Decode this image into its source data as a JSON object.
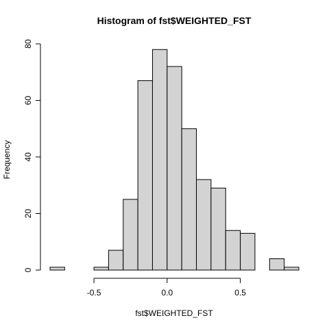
{
  "chart_data": {
    "type": "bar",
    "title": "Histogram of fst$WEIGHTED_FST",
    "xlabel": "fst$WEIGHTED_FST",
    "ylabel": "Frequency",
    "bin_width": 0.1,
    "bins": [
      {
        "x0": -0.8,
        "x1": -0.7,
        "count": 1
      },
      {
        "x0": -0.7,
        "x1": -0.6,
        "count": 0
      },
      {
        "x0": -0.6,
        "x1": -0.5,
        "count": 0
      },
      {
        "x0": -0.5,
        "x1": -0.4,
        "count": 1
      },
      {
        "x0": -0.4,
        "x1": -0.3,
        "count": 7
      },
      {
        "x0": -0.3,
        "x1": -0.2,
        "count": 25
      },
      {
        "x0": -0.2,
        "x1": -0.1,
        "count": 67
      },
      {
        "x0": -0.1,
        "x1": 0.0,
        "count": 78
      },
      {
        "x0": 0.0,
        "x1": 0.1,
        "count": 72
      },
      {
        "x0": 0.1,
        "x1": 0.2,
        "count": 50
      },
      {
        "x0": 0.2,
        "x1": 0.3,
        "count": 32
      },
      {
        "x0": 0.3,
        "x1": 0.4,
        "count": 29
      },
      {
        "x0": 0.4,
        "x1": 0.5,
        "count": 14
      },
      {
        "x0": 0.5,
        "x1": 0.6,
        "count": 13
      },
      {
        "x0": 0.6,
        "x1": 0.7,
        "count": 0
      },
      {
        "x0": 0.7,
        "x1": 0.8,
        "count": 4
      },
      {
        "x0": 0.8,
        "x1": 0.9,
        "count": 1
      }
    ],
    "x_ticks": [
      {
        "value": -0.5,
        "label": "-0.5"
      },
      {
        "value": 0.0,
        "label": "0.0"
      },
      {
        "value": 0.5,
        "label": "0.5"
      }
    ],
    "y_ticks": [
      {
        "value": 0,
        "label": "0"
      },
      {
        "value": 20,
        "label": "20"
      },
      {
        "value": 40,
        "label": "40"
      },
      {
        "value": 60,
        "label": "60"
      },
      {
        "value": 80,
        "label": "80"
      }
    ],
    "xlim": [
      -0.8,
      0.9
    ],
    "ylim": [
      0,
      80
    ],
    "grid": false,
    "legend": "none",
    "bar_fill": "#d3d3d3",
    "bar_stroke": "#000000"
  }
}
